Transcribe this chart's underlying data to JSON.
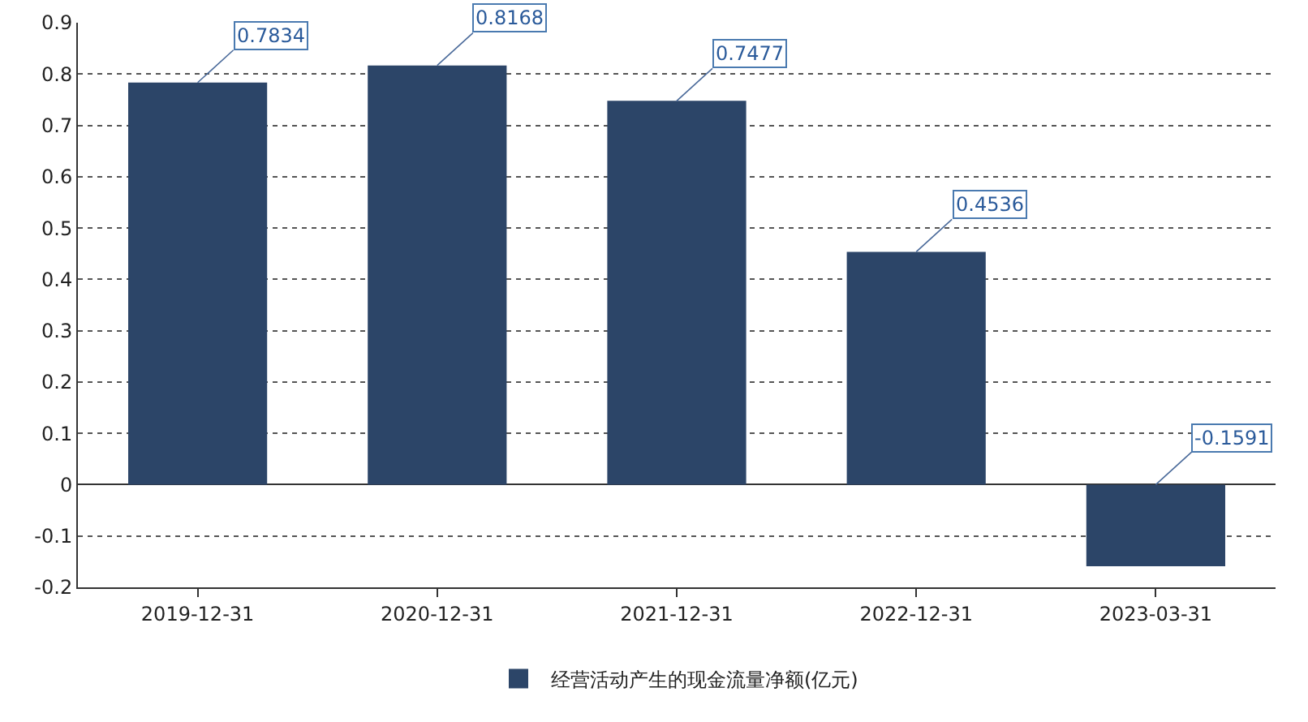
{
  "chart_data": {
    "type": "bar",
    "categories": [
      "2019-12-31",
      "2020-12-31",
      "2021-12-31",
      "2022-12-31",
      "2023-03-31"
    ],
    "series": [
      {
        "name": "经营活动产生的现金流量净额(亿元)",
        "color": "#2c4568",
        "values": [
          0.7834,
          0.8168,
          0.7477,
          0.4536,
          -0.1591
        ]
      }
    ],
    "ylim": [
      -0.2,
      0.9
    ],
    "yticks": [
      -0.2,
      -0.1,
      0,
      0.1,
      0.2,
      0.3,
      0.4,
      0.5,
      0.6,
      0.7,
      0.8,
      0.9
    ],
    "grid": "y",
    "legend": "bottom",
    "data_labels": true
  }
}
